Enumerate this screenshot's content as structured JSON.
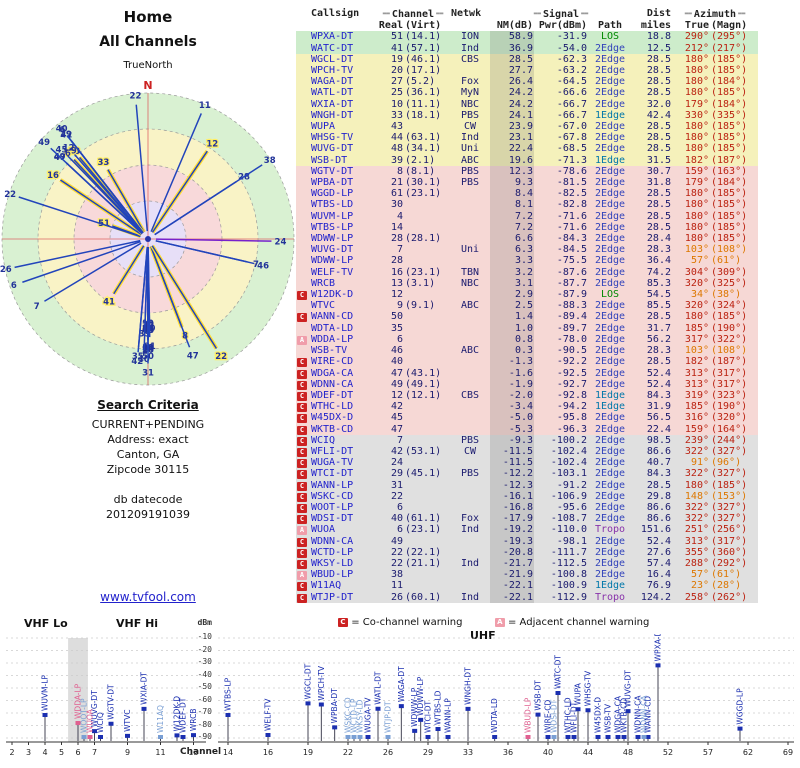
{
  "left": {
    "title1": "Home",
    "title2": "All Channels",
    "north_label": "TrueNorth",
    "n_marker": "N",
    "search": {
      "heading": "Search Criteria",
      "lines": [
        "CURRENT+PENDING",
        "Address: exact",
        "Canton, GA",
        "Zipcode 30115"
      ],
      "db_label": "db datecode",
      "db_value": "201209191039"
    },
    "link": "www.tvfool.com"
  },
  "table": {
    "headers": {
      "callsign": "Callsign",
      "channel": "Channel",
      "netwk": "Netwk",
      "signal": "Signal",
      "dist": "Dist",
      "azimuth": "Azimuth",
      "real": "Real",
      "virt": "(Virt)",
      "nm": "NM(dB)",
      "pwr": "Pwr(dBm)",
      "path": "Path",
      "miles": "miles",
      "true_az": "True",
      "magn": "(Magn)"
    }
  },
  "rows": [
    {
      "m": "",
      "cs": "WPXA-DT",
      "re": 51,
      "vi": "14.1",
      "nw": "ION",
      "nm": 58.9,
      "pw": -31.9,
      "pa": "LOS",
      "mi": 18.8,
      "az": 290,
      "mg": 295,
      "hl": true
    },
    {
      "m": "",
      "cs": "WATC-DT",
      "re": 41,
      "vi": "57.1",
      "nw": "Ind",
      "nm": 36.9,
      "pw": -54.0,
      "pa": "2Edge",
      "mi": 12.5,
      "az": 212,
      "mg": 217,
      "hl": true
    },
    {
      "m": "",
      "cs": "WGCL-DT",
      "re": 19,
      "vi": "46.1",
      "nw": "CBS",
      "nm": 28.5,
      "pw": -62.3,
      "pa": "2Edge",
      "mi": 28.5,
      "az": 180,
      "mg": 185,
      "hl": false
    },
    {
      "m": "",
      "cs": "WPCH-TV",
      "re": 20,
      "vi": "17.1",
      "nw": "",
      "nm": 27.7,
      "pw": -63.2,
      "pa": "2Edge",
      "mi": 28.5,
      "az": 180,
      "mg": 185,
      "hl": false
    },
    {
      "m": "",
      "cs": "WAGA-DT",
      "re": 27,
      "vi": "5.2",
      "nw": "Fox",
      "nm": 26.4,
      "pw": -64.5,
      "pa": "2Edge",
      "mi": 28.5,
      "az": 180,
      "mg": 184,
      "hl": false
    },
    {
      "m": "",
      "cs": "WATL-DT",
      "re": 25,
      "vi": "36.1",
      "nw": "MyN",
      "nm": 24.2,
      "pw": -66.6,
      "pa": "2Edge",
      "mi": 28.5,
      "az": 180,
      "mg": 185,
      "hl": false
    },
    {
      "m": "",
      "cs": "WXIA-DT",
      "re": 10,
      "vi": "11.1",
      "nw": "NBC",
      "nm": 24.2,
      "pw": -66.7,
      "pa": "2Edge",
      "mi": 32.0,
      "az": 179,
      "mg": 184,
      "hl": false
    },
    {
      "m": "",
      "cs": "WNGH-DT",
      "re": 33,
      "vi": "18.1",
      "nw": "PBS",
      "nm": 24.1,
      "pw": -66.7,
      "pa": "1Edge",
      "mi": 42.4,
      "az": 330,
      "mg": 335,
      "hl": true
    },
    {
      "m": "",
      "cs": "WUPA",
      "re": 43,
      "vi": "",
      "nw": "CW",
      "nm": 23.9,
      "pw": -67.0,
      "pa": "2Edge",
      "mi": 28.5,
      "az": 180,
      "mg": 185,
      "hl": false
    },
    {
      "m": "",
      "cs": "WHSG-TV",
      "re": 44,
      "vi": "63.1",
      "nw": "Ind",
      "nm": 23.1,
      "pw": -67.8,
      "pa": "2Edge",
      "mi": 28.5,
      "az": 180,
      "mg": 185,
      "hl": false
    },
    {
      "m": "",
      "cs": "WUVG-DT",
      "re": 48,
      "vi": "34.1",
      "nw": "Uni",
      "nm": 22.4,
      "pw": -68.5,
      "pa": "2Edge",
      "mi": 28.5,
      "az": 180,
      "mg": 185,
      "hl": false
    },
    {
      "m": "",
      "cs": "WSB-DT",
      "re": 39,
      "vi": "2.1",
      "nw": "ABC",
      "nm": 19.6,
      "pw": -71.3,
      "pa": "1Edge",
      "mi": 31.5,
      "az": 182,
      "mg": 187,
      "hl": false
    },
    {
      "m": "",
      "cs": "WGTV-DT",
      "re": 8,
      "vi": "8.1",
      "nw": "PBS",
      "nm": 12.3,
      "pw": -78.6,
      "pa": "2Edge",
      "mi": 30.7,
      "az": 159,
      "mg": 163,
      "hl": true
    },
    {
      "m": "",
      "cs": "WPBA-DT",
      "re": 21,
      "vi": "30.1",
      "nw": "PBS",
      "nm": 9.3,
      "pw": -81.5,
      "pa": "2Edge",
      "mi": 31.8,
      "az": 179,
      "mg": 184,
      "hl": false
    },
    {
      "m": "",
      "cs": "WGGD-LP",
      "re": 61,
      "vi": "23.1",
      "nw": "",
      "nm": 8.4,
      "pw": -82.5,
      "pa": "2Edge",
      "mi": 28.5,
      "az": 180,
      "mg": 185,
      "hl": false
    },
    {
      "m": "",
      "cs": "WTBS-LD",
      "re": 30,
      "vi": "",
      "nw": "",
      "nm": 8.1,
      "pw": -82.8,
      "pa": "2Edge",
      "mi": 28.5,
      "az": 180,
      "mg": 185,
      "hl": false
    },
    {
      "m": "",
      "cs": "WUVM-LP",
      "re": 4,
      "vi": "",
      "nw": "",
      "nm": 7.2,
      "pw": -71.6,
      "pa": "2Edge",
      "mi": 28.5,
      "az": 180,
      "mg": 185,
      "hl": false
    },
    {
      "m": "",
      "cs": "WTBS-LP",
      "re": 14,
      "vi": "",
      "nw": "",
      "nm": 7.2,
      "pw": -71.6,
      "pa": "2Edge",
      "mi": 28.5,
      "az": 180,
      "mg": 185,
      "hl": false
    },
    {
      "m": "",
      "cs": "WDWW-LP",
      "re": 28,
      "vi": "28.1",
      "nw": "",
      "nm": 6.6,
      "pw": -84.3,
      "pa": "2Edge",
      "mi": 28.4,
      "az": 180,
      "mg": 185,
      "hl": false
    },
    {
      "m": "",
      "cs": "WUVG-DT",
      "re": 7,
      "vi": "",
      "nw": "Uni",
      "nm": 6.3,
      "pw": -84.5,
      "pa": "2Edge",
      "mi": 28.3,
      "az": 103,
      "mg": 108,
      "hl": false
    },
    {
      "m": "",
      "cs": "WDWW-LP",
      "re": 28,
      "vi": "",
      "nw": "",
      "nm": 3.3,
      "pw": -75.5,
      "pa": "2Edge",
      "mi": 36.4,
      "az": 57,
      "mg": 61,
      "hl": false
    },
    {
      "m": "",
      "cs": "WELF-TV",
      "re": 16,
      "vi": "23.1",
      "nw": "TBN",
      "nm": 3.2,
      "pw": -87.6,
      "pa": "2Edge",
      "mi": 74.2,
      "az": 304,
      "mg": 309,
      "hl": true
    },
    {
      "m": "",
      "cs": "WRCB",
      "re": 13,
      "vi": "3.1",
      "nw": "NBC",
      "nm": 3.1,
      "pw": -87.7,
      "pa": "2Edge",
      "mi": 85.3,
      "az": 320,
      "mg": 325,
      "hl": true
    },
    {
      "m": "C",
      "cs": "W12DK-D",
      "re": 12,
      "vi": "",
      "nw": "",
      "nm": 2.9,
      "pw": -87.9,
      "pa": "LOS",
      "mi": 54.5,
      "az": 34,
      "mg": 38,
      "hl": true
    },
    {
      "m": "",
      "cs": "WTVC",
      "re": 9,
      "vi": "9.1",
      "nw": "ABC",
      "nm": 2.5,
      "pw": -88.3,
      "pa": "2Edge",
      "mi": 85.5,
      "az": 320,
      "mg": 324,
      "hl": true
    },
    {
      "m": "C",
      "cs": "WANN-CD",
      "re": 50,
      "vi": "",
      "nw": "",
      "nm": 1.4,
      "pw": -89.4,
      "pa": "2Edge",
      "mi": 28.5,
      "az": 180,
      "mg": 185,
      "hl": false
    },
    {
      "m": "",
      "cs": "WDTA-LD",
      "re": 35,
      "vi": "",
      "nw": "",
      "nm": 1.0,
      "pw": -89.7,
      "pa": "2Edge",
      "mi": 31.7,
      "az": 185,
      "mg": 190,
      "hl": false
    },
    {
      "m": "A",
      "cs": "WDDA-LP",
      "re": 6,
      "vi": "",
      "nw": "",
      "nm": 0.8,
      "pw": -78.0,
      "pa": "2Edge",
      "mi": 56.2,
      "az": 317,
      "mg": 322,
      "hl": true
    },
    {
      "m": "",
      "cs": "WSB-TV",
      "re": 46,
      "vi": "",
      "nw": "ABC",
      "nm": 0.3,
      "pw": -90.5,
      "pa": "2Edge",
      "mi": 28.3,
      "az": 103,
      "mg": 108,
      "hl": false
    },
    {
      "m": "C",
      "cs": "WIRE-CD",
      "re": 40,
      "vi": "",
      "nw": "",
      "nm": -1.3,
      "pw": -92.2,
      "pa": "2Edge",
      "mi": 28.5,
      "az": 182,
      "mg": 187,
      "hl": false
    },
    {
      "m": "C",
      "cs": "WDGA-CA",
      "re": 47,
      "vi": "43.1",
      "nw": "",
      "nm": -1.6,
      "pw": -92.5,
      "pa": "2Edge",
      "mi": 52.4,
      "az": 313,
      "mg": 317,
      "hl": false
    },
    {
      "m": "C",
      "cs": "WDNN-CA",
      "re": 49,
      "vi": "49.1",
      "nw": "",
      "nm": -1.9,
      "pw": -92.7,
      "pa": "2Edge",
      "mi": 52.4,
      "az": 313,
      "mg": 317,
      "hl": false
    },
    {
      "m": "C",
      "cs": "WDEF-DT",
      "re": 12,
      "vi": "12.1",
      "nw": "CBS",
      "nm": -2.0,
      "pw": -92.8,
      "pa": "1Edge",
      "mi": 84.3,
      "az": 319,
      "mg": 323,
      "hl": false
    },
    {
      "m": "C",
      "cs": "WTHC-LD",
      "re": 42,
      "vi": "",
      "nw": "",
      "nm": -3.4,
      "pw": -94.2,
      "pa": "1Edge",
      "mi": 31.9,
      "az": 185,
      "mg": 190,
      "hl": false
    },
    {
      "m": "C",
      "cs": "W45DX-D",
      "re": 45,
      "vi": "",
      "nw": "",
      "nm": -5.0,
      "pw": -95.8,
      "pa": "2Edge",
      "mi": 56.5,
      "az": 316,
      "mg": 320,
      "hl": false
    },
    {
      "m": "C",
      "cs": "WKTB-CD",
      "re": 47,
      "vi": "",
      "nw": "",
      "nm": -5.3,
      "pw": -96.3,
      "pa": "2Edge",
      "mi": 22.4,
      "az": 159,
      "mg": 164,
      "hl": false
    },
    {
      "m": "C",
      "cs": "WCIQ",
      "re": 7,
      "vi": "",
      "nw": "PBS",
      "nm": -9.3,
      "pw": -100.2,
      "pa": "2Edge",
      "mi": 98.5,
      "az": 239,
      "mg": 244,
      "hl": false
    },
    {
      "m": "C",
      "cs": "WFLI-DT",
      "re": 42,
      "vi": "53.1",
      "nw": "CW",
      "nm": -11.5,
      "pw": -102.4,
      "pa": "2Edge",
      "mi": 86.6,
      "az": 322,
      "mg": 327,
      "hl": false
    },
    {
      "m": "C",
      "cs": "WUGA-TV",
      "re": 24,
      "vi": "",
      "nw": "",
      "nm": -11.5,
      "pw": -102.4,
      "pa": "2Edge",
      "mi": 40.7,
      "az": 91,
      "mg": 96,
      "hl": false
    },
    {
      "m": "C",
      "cs": "WTCI-DT",
      "re": 29,
      "vi": "45.1",
      "nw": "PBS",
      "nm": -12.2,
      "pw": -103.1,
      "pa": "2Edge",
      "mi": 84.3,
      "az": 322,
      "mg": 327,
      "hl": false
    },
    {
      "m": "C",
      "cs": "WANN-LP",
      "re": 31,
      "vi": "",
      "nw": "",
      "nm": -12.3,
      "pw": -91.2,
      "pa": "2Edge",
      "mi": 28.5,
      "az": 180,
      "mg": 185,
      "hl": false
    },
    {
      "m": "C",
      "cs": "WSKC-CD",
      "re": 22,
      "vi": "",
      "nw": "",
      "nm": -16.1,
      "pw": -106.9,
      "pa": "2Edge",
      "mi": 29.8,
      "az": 148,
      "mg": 153,
      "hl": true
    },
    {
      "m": "C",
      "cs": "WOOT-LP",
      "re": 6,
      "vi": "",
      "nw": "",
      "nm": -16.8,
      "pw": -95.6,
      "pa": "2Edge",
      "mi": 86.6,
      "az": 322,
      "mg": 327,
      "hl": false
    },
    {
      "m": "C",
      "cs": "WDSI-DT",
      "re": 40,
      "vi": "61.1",
      "nw": "Fox",
      "nm": -17.9,
      "pw": -108.7,
      "pa": "2Edge",
      "mi": 86.6,
      "az": 322,
      "mg": 327,
      "hl": false
    },
    {
      "m": "A",
      "cs": "WUOA",
      "re": 6,
      "vi": "23.1",
      "nw": "Ind",
      "nm": -19.2,
      "pw": -110.0,
      "pa": "Tropo",
      "mi": 151.6,
      "az": 251,
      "mg": 256,
      "hl": false
    },
    {
      "m": "C",
      "cs": "WDNN-CA",
      "re": 49,
      "vi": "",
      "nw": "",
      "nm": -19.3,
      "pw": -98.1,
      "pa": "2Edge",
      "mi": 52.4,
      "az": 313,
      "mg": 317,
      "hl": false
    },
    {
      "m": "C",
      "cs": "WCTD-LP",
      "re": 22,
      "vi": "22.1",
      "nw": "",
      "nm": -20.8,
      "pw": -111.7,
      "pa": "2Edge",
      "mi": 27.6,
      "az": 355,
      "mg": 360,
      "hl": false
    },
    {
      "m": "C",
      "cs": "WKSY-LD",
      "re": 22,
      "vi": "21.1",
      "nw": "Ind",
      "nm": -21.7,
      "pw": -112.5,
      "pa": "2Edge",
      "mi": 57.4,
      "az": 288,
      "mg": 292,
      "hl": false
    },
    {
      "m": "A",
      "cs": "WBUD-LP",
      "re": 38,
      "vi": "",
      "nw": "",
      "nm": -21.9,
      "pw": -100.8,
      "pa": "2Edge",
      "mi": 16.4,
      "az": 57,
      "mg": 61,
      "hl": false
    },
    {
      "m": "C",
      "cs": "W11AQ",
      "re": 11,
      "vi": "",
      "nw": "",
      "nm": -22.1,
      "pw": -100.9,
      "pa": "1Edge",
      "mi": 76.9,
      "az": 23,
      "mg": 28,
      "hl": false
    },
    {
      "m": "C",
      "cs": "WTJP-DT",
      "re": 26,
      "vi": "60.1",
      "nw": "Ind",
      "nm": -22.1,
      "pw": -112.9,
      "pa": "Tropo",
      "mi": 124.2,
      "az": 258,
      "mg": 262,
      "hl": false
    }
  ],
  "bottom": {
    "vhf_lo": "VHF Lo",
    "vhf_hi": "VHF Hi",
    "uhf": "UHF",
    "dbm_label": "dBm",
    "y_ticks": [
      -10,
      -20,
      -30,
      -40,
      -50,
      -60,
      -70,
      -80,
      -90
    ],
    "channel_label": "Channel",
    "left_ticks": [
      2,
      3,
      4,
      5,
      6,
      7,
      9,
      11,
      13
    ],
    "uhf_ticks": [
      14,
      16,
      19,
      22,
      26,
      29,
      33,
      36,
      40,
      44,
      48,
      52,
      57,
      62,
      69
    ],
    "legend": {
      "c": "C",
      "c_text": "= Co-channel warning",
      "a": "A",
      "a_text": "= Adjacent channel warning"
    }
  },
  "colors": {
    "band_green": "#cdeccb",
    "band_yellow": "#f5f1bb",
    "band_pink": "#f6d8d5",
    "band_gray": "#e0e0e0",
    "nm_stripe": "rgba(90,90,90,0.18)",
    "link": "#2222cc",
    "num": "#1a1a6e",
    "az_red": "#bb2211",
    "az_orange": "#dd7700",
    "path_los": "#008800",
    "path_1edge": "#0077aa",
    "path_2edge": "#3344bb",
    "path_tropo": "#8833aa",
    "marker_c": "#cc2222",
    "marker_a": "#f09daa",
    "stem_blue": "#1b2fb0",
    "stem_light": "#7a9fd4",
    "stem_pink": "#e06090",
    "radar_rings": [
      {
        "r": 146,
        "c": "#d9f1d2"
      },
      {
        "r": 110,
        "c": "#f9f3c6"
      },
      {
        "r": 74,
        "c": "#f8d9da"
      },
      {
        "r": 38,
        "c": "#e7dff7"
      }
    ]
  }
}
